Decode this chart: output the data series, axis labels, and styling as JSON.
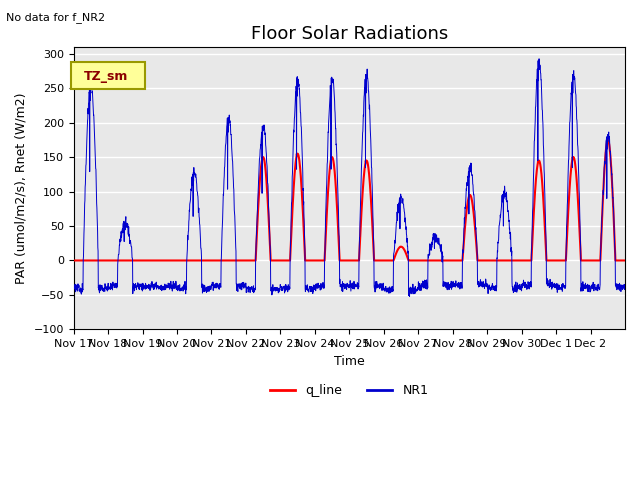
{
  "title": "Floor Solar Radiations",
  "top_left_text": "No data for f_NR2",
  "legend_label_text": "TZ_sm",
  "xlabel": "Time",
  "ylabel": "PAR (umol/m2/s), Rnet (W/m2)",
  "n_days": 16,
  "ylim": [
    -100,
    310
  ],
  "yticks": [
    -100,
    -50,
    0,
    50,
    100,
    150,
    200,
    250,
    300
  ],
  "xtick_labels": [
    "Nov 17",
    "Nov 18",
    "Nov 19",
    "Nov 20",
    "Nov 21",
    "Nov 22",
    "Nov 23",
    "Nov 24",
    "Nov 25",
    "Nov 26",
    "Nov 27",
    "Nov 28",
    "Nov 29",
    "Nov 30",
    "Dec 1",
    "Dec 2"
  ],
  "blue_line_color": "#0000cd",
  "red_line_color": "#ff0000",
  "background_color": "#e8e8e8",
  "grid_color": "#ffffff",
  "legend_box_facecolor": "#ffff99",
  "legend_box_edgecolor": "#999900",
  "title_fontsize": 13,
  "label_fontsize": 9,
  "tick_fontsize": 8,
  "day_peaks_blue": [
    258,
    55,
    5,
    128,
    207,
    195,
    265,
    265,
    270,
    92,
    35,
    135,
    100,
    290,
    270,
    180
  ],
  "day_peaks_red": [
    0,
    0,
    0,
    0,
    0,
    150,
    155,
    150,
    145,
    20,
    0,
    95,
    0,
    145,
    150,
    175
  ]
}
